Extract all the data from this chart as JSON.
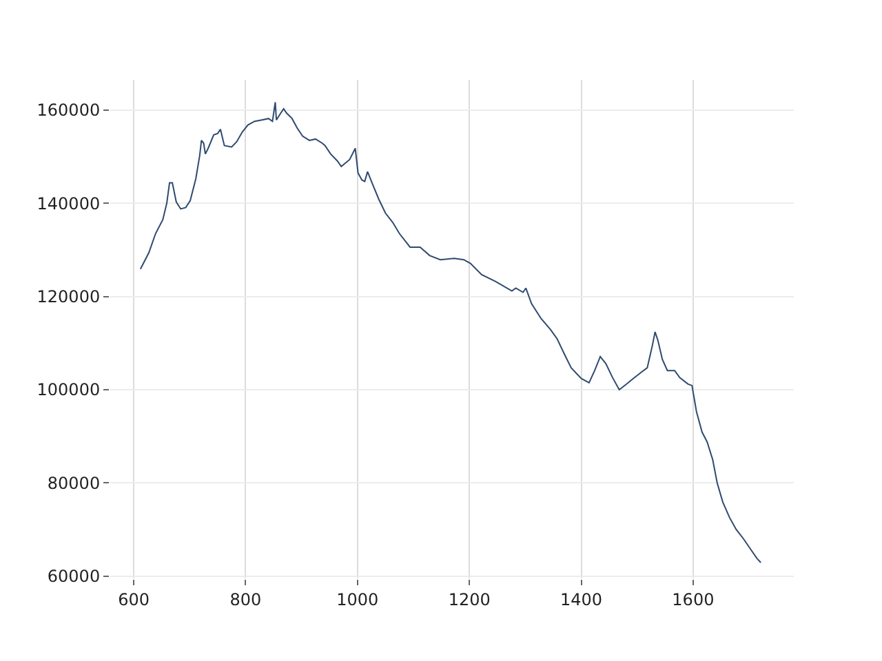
{
  "chart_data": {
    "type": "line",
    "x": [
      612,
      627,
      639,
      652,
      659,
      664,
      669,
      676,
      684,
      693,
      701,
      711,
      718,
      721,
      725,
      728,
      733,
      743,
      750,
      755,
      762,
      775,
      784,
      794,
      804,
      816,
      829,
      841,
      848,
      853,
      855,
      863,
      868,
      873,
      883,
      892,
      902,
      914,
      925,
      937,
      942,
      952,
      964,
      971,
      986,
      996,
      1001,
      1008,
      1013,
      1018,
      1026,
      1038,
      1050,
      1063,
      1075,
      1094,
      1112,
      1129,
      1148,
      1173,
      1190,
      1202,
      1222,
      1247,
      1276,
      1283,
      1296,
      1301,
      1311,
      1328,
      1345,
      1357,
      1370,
      1382,
      1400,
      1414,
      1424,
      1434,
      1444,
      1456,
      1468,
      1481,
      1493,
      1508,
      1518,
      1527,
      1532,
      1537,
      1545,
      1554,
      1567,
      1576,
      1591,
      1598,
      1606,
      1616,
      1625,
      1635,
      1643,
      1653,
      1665,
      1677,
      1690,
      1702,
      1714,
      1721
    ],
    "series": [
      {
        "color": "#2e4a6e",
        "values": [
          125900,
          129400,
          133500,
          136500,
          140000,
          144400,
          144400,
          140300,
          138800,
          139100,
          140600,
          145300,
          150300,
          153500,
          152900,
          150600,
          151800,
          154700,
          155000,
          155900,
          152400,
          152100,
          153200,
          155300,
          156800,
          157600,
          157900,
          158200,
          157600,
          161700,
          157900,
          159400,
          160300,
          159400,
          158200,
          156200,
          154400,
          153500,
          153800,
          152900,
          152400,
          150600,
          149100,
          147900,
          149400,
          151800,
          146500,
          145000,
          144700,
          146800,
          144400,
          140900,
          137900,
          135900,
          133500,
          130600,
          130600,
          128800,
          127900,
          128200,
          127900,
          127100,
          124700,
          123200,
          121200,
          121800,
          120900,
          121800,
          118500,
          115300,
          112900,
          110900,
          107600,
          104700,
          102400,
          101500,
          104100,
          107100,
          105600,
          102600,
          100000,
          101200,
          102400,
          103800,
          104700,
          109400,
          112400,
          110600,
          106500,
          104100,
          104100,
          102600,
          101200,
          100900,
          95300,
          90900,
          88800,
          85000,
          80000,
          75900,
          72600,
          70000,
          68000,
          65900,
          63800,
          62900
        ]
      }
    ],
    "xlim": [
      558,
      1780
    ],
    "ylim": [
      59500,
      166500
    ],
    "xticks": [
      600,
      800,
      1000,
      1200,
      1400,
      1600
    ],
    "yticks": [
      60000,
      80000,
      100000,
      120000,
      140000,
      160000
    ],
    "grid": true,
    "marker": "none",
    "line_style": "solid"
  }
}
